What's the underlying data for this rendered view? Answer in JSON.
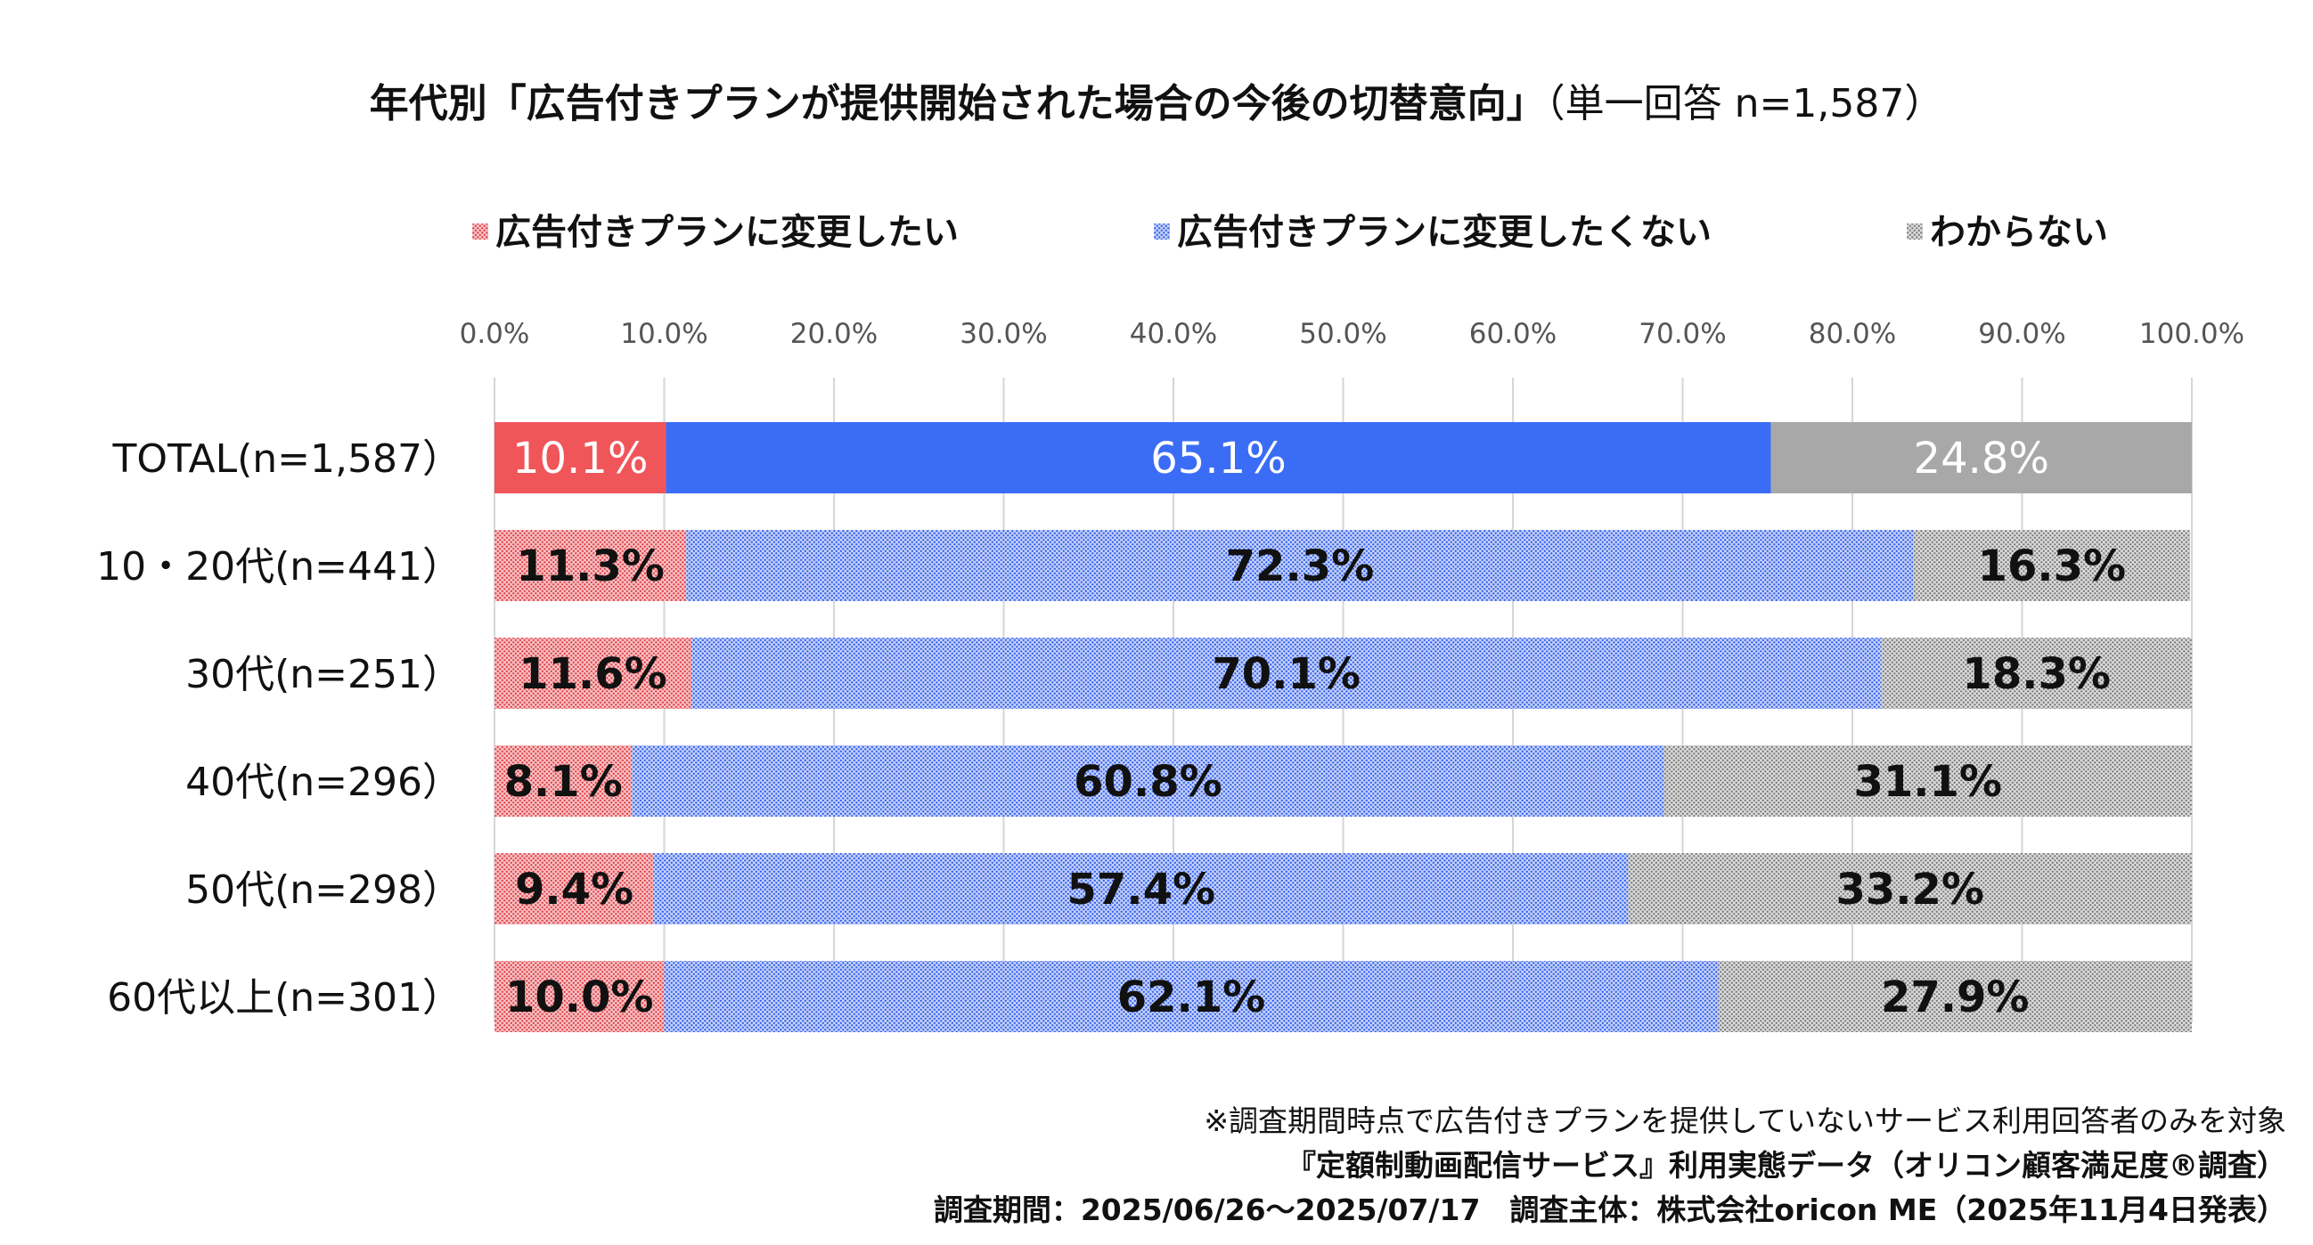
{
  "colors": {
    "change": "#f0555a",
    "not_change": "#3a6cf5",
    "unknown": "#a8a8a8",
    "grid": "#d6d6d6",
    "axis_text": "#555555"
  },
  "chart_data": {
    "type": "bar",
    "orientation": "horizontal",
    "stacked": true,
    "title_main": "年代別「広告付きプランが提供開始された場合の今後の切替意向」",
    "title_sub": "（単一回答 n=1,587）",
    "legend_position": "top",
    "xlim": [
      0,
      100
    ],
    "xticks": [
      0,
      10,
      20,
      30,
      40,
      50,
      60,
      70,
      80,
      90,
      100
    ],
    "xtick_labels": [
      "0.0%",
      "10.0%",
      "20.0%",
      "30.0%",
      "40.0%",
      "50.0%",
      "60.0%",
      "70.0%",
      "80.0%",
      "90.0%",
      "100.0%"
    ],
    "grid": true,
    "categories": [
      "TOTAL(n=1,587）",
      "10・20代(n=441）",
      "30代(n=251）",
      "40代(n=296）",
      "50代(n=298）",
      "60代以上(n=301）"
    ],
    "series": [
      {
        "name": "広告付きプランに変更したい",
        "values": [
          10.1,
          11.3,
          11.6,
          8.1,
          9.4,
          10.0
        ],
        "labels": [
          "10.1%",
          "11.3%",
          "11.6%",
          "8.1%",
          "9.4%",
          "10.0%"
        ]
      },
      {
        "name": "広告付きプランに変更したくない",
        "values": [
          65.1,
          72.3,
          70.1,
          60.8,
          57.4,
          62.1
        ],
        "labels": [
          "65.1%",
          "72.3%",
          "70.1%",
          "60.8%",
          "57.4%",
          "62.1%"
        ]
      },
      {
        "name": "わからない",
        "values": [
          24.8,
          16.3,
          18.3,
          31.1,
          33.2,
          27.9
        ],
        "labels": [
          "24.8%",
          "16.3%",
          "18.3%",
          "31.1%",
          "33.2%",
          "27.9%"
        ]
      }
    ]
  },
  "footnotes": {
    "note": "※調査期間時点で広告付きプランを提供していないサービス利用回答者のみを対象",
    "source": "『定額制動画配信サービス』利用実態データ（オリコン顧客満足度®調査）",
    "period": "調査期間：2025/06/26～2025/07/17　調査主体：株式会社oricon ME（2025年11月4日発表）"
  }
}
